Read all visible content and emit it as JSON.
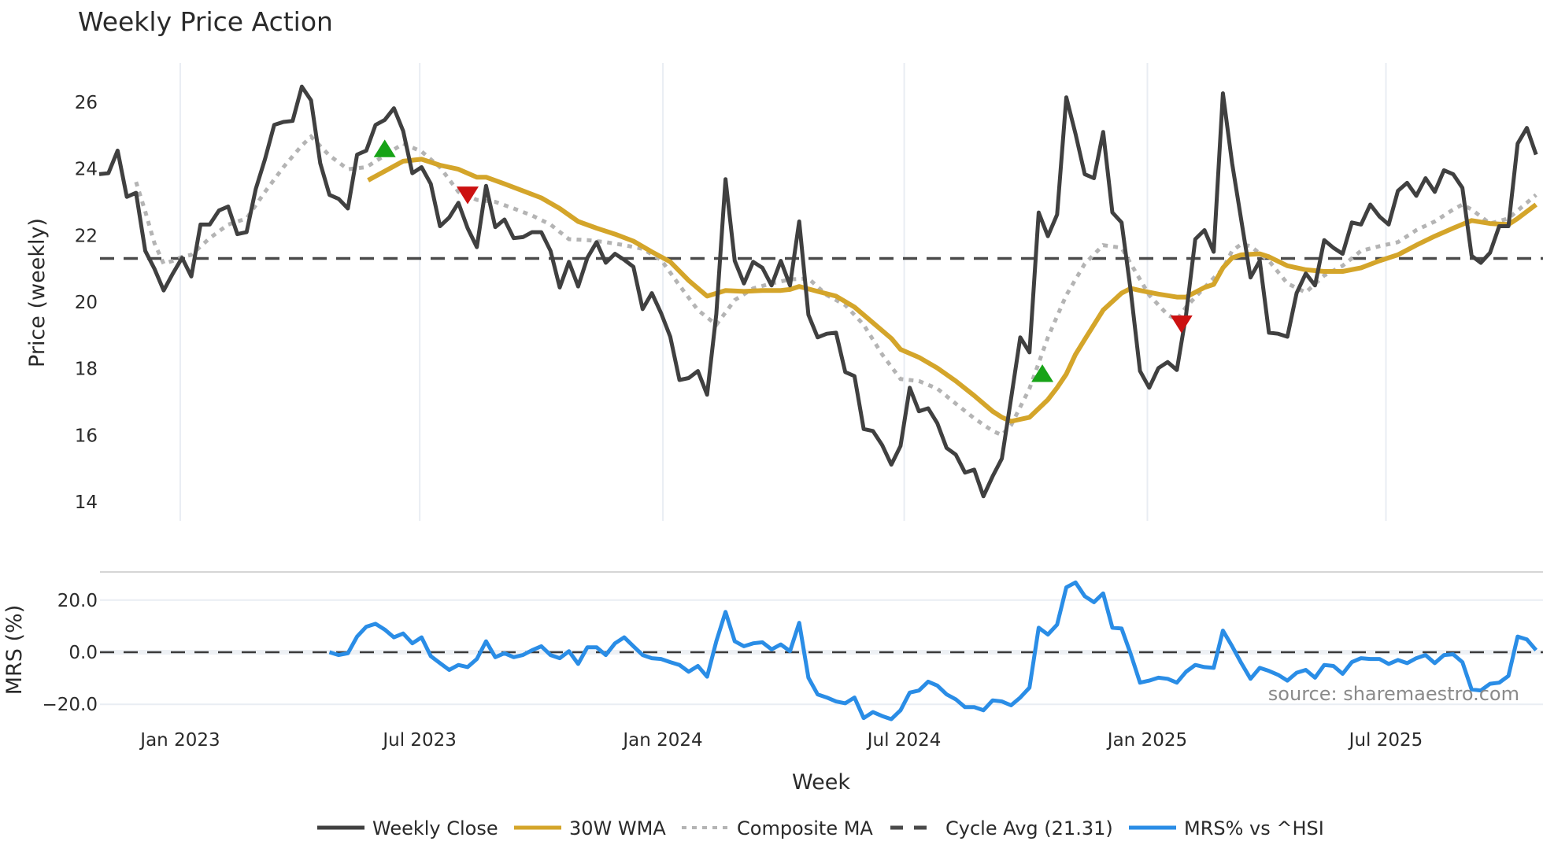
{
  "title": "Weekly Price Action",
  "source_text": "source: sharemaestro.com",
  "colors": {
    "weekly_close": "#404040",
    "wma": "#d4a52a",
    "composite": "#b4b4b4",
    "cycle_avg": "#4a4a4a",
    "mrs": "#2a8de6",
    "buy_marker": "#17a317",
    "sell_marker": "#cc1111",
    "grid": "#e9edf3"
  },
  "legend": [
    {
      "label": "Weekly Close",
      "style": "solid",
      "color": "#404040"
    },
    {
      "label": "30W WMA",
      "style": "solid",
      "color": "#d4a52a"
    },
    {
      "label": "Composite MA",
      "style": "dotted",
      "color": "#b4b4b4"
    },
    {
      "label": "Cycle Avg (21.31)",
      "style": "dashed",
      "color": "#4a4a4a"
    },
    {
      "label": "MRS% vs ^HSI",
      "style": "solid",
      "color": "#2a8de6"
    }
  ],
  "chart_data": [
    {
      "type": "line",
      "title": "Weekly Price Action",
      "xlabel": "Week",
      "ylabel": "Price (weekly)",
      "ylim": [
        13.6,
        27.0
      ],
      "yticks": [
        14,
        16,
        18,
        20,
        22,
        24,
        26
      ],
      "x_tick_labels": [
        "Jan 2023",
        "Jul 2023",
        "Jan 2024",
        "Jul 2024",
        "Jan 2025",
        "Jul 2025"
      ],
      "x_tick_week_index": [
        8.8,
        34.8,
        61.2,
        87.4,
        113.8,
        139.7
      ],
      "x_note": "x = week index (0 = first weekly bar, ~early Nov 2022)",
      "grid": true,
      "legend_position": "bottom",
      "cycle_avg": 21.31,
      "series": [
        {
          "name": "Weekly Close",
          "start_index": 0,
          "values": [
            23.84,
            23.87,
            24.55,
            23.16,
            23.28,
            21.54,
            21.0,
            20.35,
            20.86,
            21.33,
            20.77,
            22.33,
            22.33,
            22.75,
            22.87,
            22.04,
            22.1,
            23.4,
            24.29,
            25.32,
            25.41,
            25.44,
            26.47,
            26.06,
            24.17,
            23.22,
            23.1,
            22.81,
            24.43,
            24.55,
            25.32,
            25.47,
            25.82,
            25.14,
            23.87,
            24.05,
            23.55,
            22.28,
            22.54,
            22.98,
            22.22,
            21.65,
            23.49,
            22.25,
            22.48,
            21.92,
            21.95,
            22.1,
            22.1,
            21.54,
            20.44,
            21.21,
            20.47,
            21.33,
            21.8,
            21.18,
            21.45,
            21.27,
            21.06,
            19.79,
            20.27,
            19.67,
            18.96,
            17.66,
            17.72,
            17.93,
            17.22,
            19.64,
            23.69,
            21.24,
            20.56,
            21.21,
            21.03,
            20.5,
            21.24,
            20.5,
            22.42,
            19.62,
            18.94,
            19.05,
            19.08,
            17.9,
            17.78,
            16.19,
            16.13,
            15.71,
            15.12,
            15.68,
            17.43,
            16.72,
            16.81,
            16.36,
            15.62,
            15.42,
            14.88,
            14.97,
            14.17,
            14.77,
            15.3,
            17.1,
            18.94,
            18.49,
            22.69,
            21.98,
            22.63,
            26.15,
            25.05,
            23.84,
            23.72,
            25.11,
            22.69,
            22.39,
            20.32,
            17.93,
            17.43,
            18.02,
            18.2,
            17.96,
            19.62,
            21.89,
            22.16,
            21.51,
            26.27,
            24.17,
            22.45,
            20.74,
            21.24,
            19.08,
            19.05,
            18.96,
            20.27,
            20.86,
            20.5,
            21.86,
            21.63,
            21.45,
            22.39,
            22.33,
            22.93,
            22.57,
            22.33,
            23.34,
            23.58,
            23.19,
            23.72,
            23.31,
            23.96,
            23.84,
            23.43,
            21.39,
            21.18,
            21.48,
            22.28,
            22.28,
            24.76,
            25.23,
            24.43
          ]
        },
        {
          "name": "30W WMA",
          "points": [
            [
              29.2,
              23.66
            ],
            [
              31,
              23.93
            ],
            [
              33,
              24.23
            ],
            [
              35,
              24.29
            ],
            [
              37,
              24.11
            ],
            [
              39,
              23.99
            ],
            [
              41,
              23.75
            ],
            [
              42,
              23.75
            ],
            [
              44,
              23.55
            ],
            [
              46,
              23.34
            ],
            [
              48,
              23.13
            ],
            [
              50,
              22.81
            ],
            [
              52,
              22.42
            ],
            [
              54,
              22.22
            ],
            [
              56,
              22.04
            ],
            [
              58,
              21.83
            ],
            [
              60,
              21.51
            ],
            [
              62,
              21.21
            ],
            [
              64,
              20.65
            ],
            [
              66,
              20.18
            ],
            [
              68,
              20.35
            ],
            [
              70,
              20.32
            ],
            [
              72,
              20.35
            ],
            [
              74,
              20.35
            ],
            [
              75,
              20.38
            ],
            [
              76,
              20.47
            ],
            [
              78,
              20.32
            ],
            [
              80,
              20.18
            ],
            [
              82,
              19.85
            ],
            [
              84,
              19.38
            ],
            [
              86,
              18.91
            ],
            [
              87,
              18.58
            ],
            [
              89,
              18.34
            ],
            [
              91,
              18.02
            ],
            [
              93,
              17.63
            ],
            [
              95,
              17.19
            ],
            [
              97,
              16.72
            ],
            [
              98,
              16.54
            ],
            [
              99,
              16.42
            ],
            [
              101,
              16.54
            ],
            [
              103,
              17.07
            ],
            [
              104,
              17.43
            ],
            [
              105,
              17.84
            ],
            [
              106,
              18.43
            ],
            [
              107,
              18.88
            ],
            [
              109,
              19.76
            ],
            [
              111,
              20.27
            ],
            [
              112,
              20.41
            ],
            [
              113,
              20.35
            ],
            [
              115,
              20.24
            ],
            [
              117,
              20.15
            ],
            [
              118,
              20.15
            ],
            [
              120,
              20.44
            ],
            [
              121,
              20.53
            ],
            [
              122,
              21.03
            ],
            [
              123,
              21.33
            ],
            [
              124,
              21.42
            ],
            [
              126,
              21.45
            ],
            [
              127,
              21.36
            ],
            [
              129,
              21.09
            ],
            [
              131,
              20.97
            ],
            [
              133,
              20.92
            ],
            [
              135,
              20.92
            ],
            [
              137,
              21.03
            ],
            [
              139,
              21.24
            ],
            [
              141,
              21.42
            ],
            [
              143,
              21.71
            ],
            [
              145,
              21.98
            ],
            [
              147,
              22.22
            ],
            [
              149,
              22.45
            ],
            [
              151,
              22.36
            ],
            [
              153,
              22.33
            ],
            [
              154,
              22.51
            ],
            [
              156,
              22.93
            ]
          ]
        },
        {
          "name": "Composite MA",
          "points": [
            [
              4,
              23.61
            ],
            [
              5,
              22.72
            ],
            [
              6,
              21.77
            ],
            [
              7,
              21.15
            ],
            [
              8,
              21.24
            ],
            [
              9,
              21.36
            ],
            [
              10,
              21.42
            ],
            [
              12,
              21.92
            ],
            [
              14,
              22.33
            ],
            [
              16,
              22.51
            ],
            [
              18,
              23.31
            ],
            [
              20,
              24.05
            ],
            [
              22,
              24.7
            ],
            [
              23,
              24.97
            ],
            [
              25,
              24.4
            ],
            [
              27,
              23.99
            ],
            [
              29,
              24.05
            ],
            [
              31,
              24.4
            ],
            [
              33,
              24.76
            ],
            [
              35,
              24.52
            ],
            [
              37,
              24.05
            ],
            [
              39,
              23.31
            ],
            [
              41,
              23.07
            ],
            [
              43,
              23.01
            ],
            [
              45,
              22.81
            ],
            [
              47,
              22.6
            ],
            [
              49,
              22.33
            ],
            [
              51,
              21.89
            ],
            [
              53,
              21.86
            ],
            [
              55,
              21.8
            ],
            [
              57,
              21.71
            ],
            [
              59,
              21.6
            ],
            [
              61,
              21.27
            ],
            [
              63,
              20.5
            ],
            [
              65,
              19.76
            ],
            [
              67,
              19.32
            ],
            [
              69,
              20.06
            ],
            [
              71,
              20.41
            ],
            [
              73,
              20.56
            ],
            [
              75,
              20.68
            ],
            [
              77,
              20.71
            ],
            [
              79,
              20.21
            ],
            [
              81,
              19.91
            ],
            [
              83,
              19.32
            ],
            [
              85,
              18.43
            ],
            [
              87,
              17.69
            ],
            [
              89,
              17.63
            ],
            [
              91,
              17.4
            ],
            [
              93,
              16.95
            ],
            [
              95,
              16.51
            ],
            [
              97,
              16.13
            ],
            [
              98,
              16.01
            ],
            [
              99,
              16.3
            ],
            [
              101,
              17.4
            ],
            [
              103,
              18.94
            ],
            [
              105,
              20.21
            ],
            [
              107,
              21.15
            ],
            [
              109,
              21.71
            ],
            [
              111,
              21.63
            ],
            [
              112,
              21.15
            ],
            [
              114,
              20.21
            ],
            [
              116,
              19.62
            ],
            [
              117,
              19.47
            ],
            [
              118,
              19.85
            ],
            [
              120,
              20.44
            ],
            [
              122,
              21.0
            ],
            [
              123,
              21.54
            ],
            [
              124,
              21.74
            ],
            [
              125,
              21.68
            ],
            [
              127,
              21.24
            ],
            [
              129,
              20.56
            ],
            [
              131,
              20.29
            ],
            [
              133,
              20.8
            ],
            [
              135,
              21.09
            ],
            [
              137,
              21.54
            ],
            [
              139,
              21.68
            ],
            [
              141,
              21.8
            ],
            [
              143,
              22.16
            ],
            [
              145,
              22.42
            ],
            [
              147,
              22.78
            ],
            [
              148,
              22.93
            ],
            [
              149,
              22.78
            ],
            [
              151,
              22.36
            ],
            [
              153,
              22.51
            ],
            [
              156,
              23.22
            ]
          ]
        },
        {
          "name": "Cycle Avg (21.31)",
          "constant": 21.31
        }
      ],
      "markers": [
        {
          "type": "buy",
          "shape": "triangle-up",
          "week_index": 31,
          "value": 24.55
        },
        {
          "type": "sell",
          "shape": "triangle-down",
          "week_index": 40,
          "value": 23.27
        },
        {
          "type": "buy",
          "shape": "triangle-up",
          "week_index": 102.4,
          "value": 17.8
        },
        {
          "type": "sell",
          "shape": "triangle-down",
          "week_index": 117.5,
          "value": 19.4
        }
      ]
    },
    {
      "type": "line",
      "title": "",
      "xlabel": "Week",
      "ylabel": "MRS (%)",
      "ylim": [
        -30,
        30
      ],
      "yticks": [
        -20.0,
        0.0,
        20.0
      ],
      "ytick_labels": [
        "−20.0",
        "0.0",
        "20.0"
      ],
      "zero_line": 0.0,
      "series": [
        {
          "name": "MRS% vs ^HSI",
          "start_index": 25,
          "values": [
            0.0,
            -1.1,
            -0.4,
            6.0,
            9.8,
            10.9,
            8.7,
            5.7,
            7.2,
            3.4,
            5.7,
            -1.5,
            -4.2,
            -6.8,
            -4.9,
            -5.7,
            -2.6,
            4.2,
            -1.9,
            -0.4,
            -1.9,
            -1.1,
            0.8,
            2.3,
            -1.1,
            -2.3,
            0.4,
            -4.5,
            1.9,
            1.9,
            -1.1,
            3.4,
            5.7,
            2.3,
            -1.1,
            -2.3,
            -2.6,
            -3.8,
            -4.9,
            -7.5,
            -5.3,
            -9.4,
            4.2,
            15.5,
            4.2,
            2.3,
            3.4,
            3.8,
            1.1,
            3.0,
            0.4,
            11.3,
            -9.8,
            -16.2,
            -17.4,
            -18.9,
            -19.6,
            -17.4,
            -25.3,
            -23.0,
            -24.5,
            -25.7,
            -22.3,
            -15.5,
            -14.7,
            -11.3,
            -12.8,
            -16.2,
            -18.1,
            -21.1,
            -21.1,
            -22.3,
            -18.5,
            -18.9,
            -20.4,
            -17.4,
            -13.6,
            9.4,
            6.8,
            10.6,
            24.9,
            26.8,
            21.5,
            19.2,
            22.6,
            9.4,
            9.1,
            -0.8,
            -11.7,
            -10.9,
            -9.8,
            -10.2,
            -11.7,
            -7.5,
            -4.9,
            -5.7,
            -6.0,
            8.3,
            2.3,
            -4.2,
            -10.2,
            -6.0,
            -7.2,
            -8.7,
            -10.9,
            -7.9,
            -6.8,
            -9.8,
            -4.9,
            -5.3,
            -8.3,
            -3.8,
            -2.3,
            -2.6,
            -2.6,
            -4.5,
            -3.0,
            -4.2,
            -2.3,
            -1.1,
            -4.2,
            -1.1,
            -0.8,
            -3.8,
            -14.3,
            -14.7,
            -12.1,
            -11.7,
            -9.1,
            6.0,
            4.9,
            0.8
          ]
        }
      ]
    }
  ]
}
